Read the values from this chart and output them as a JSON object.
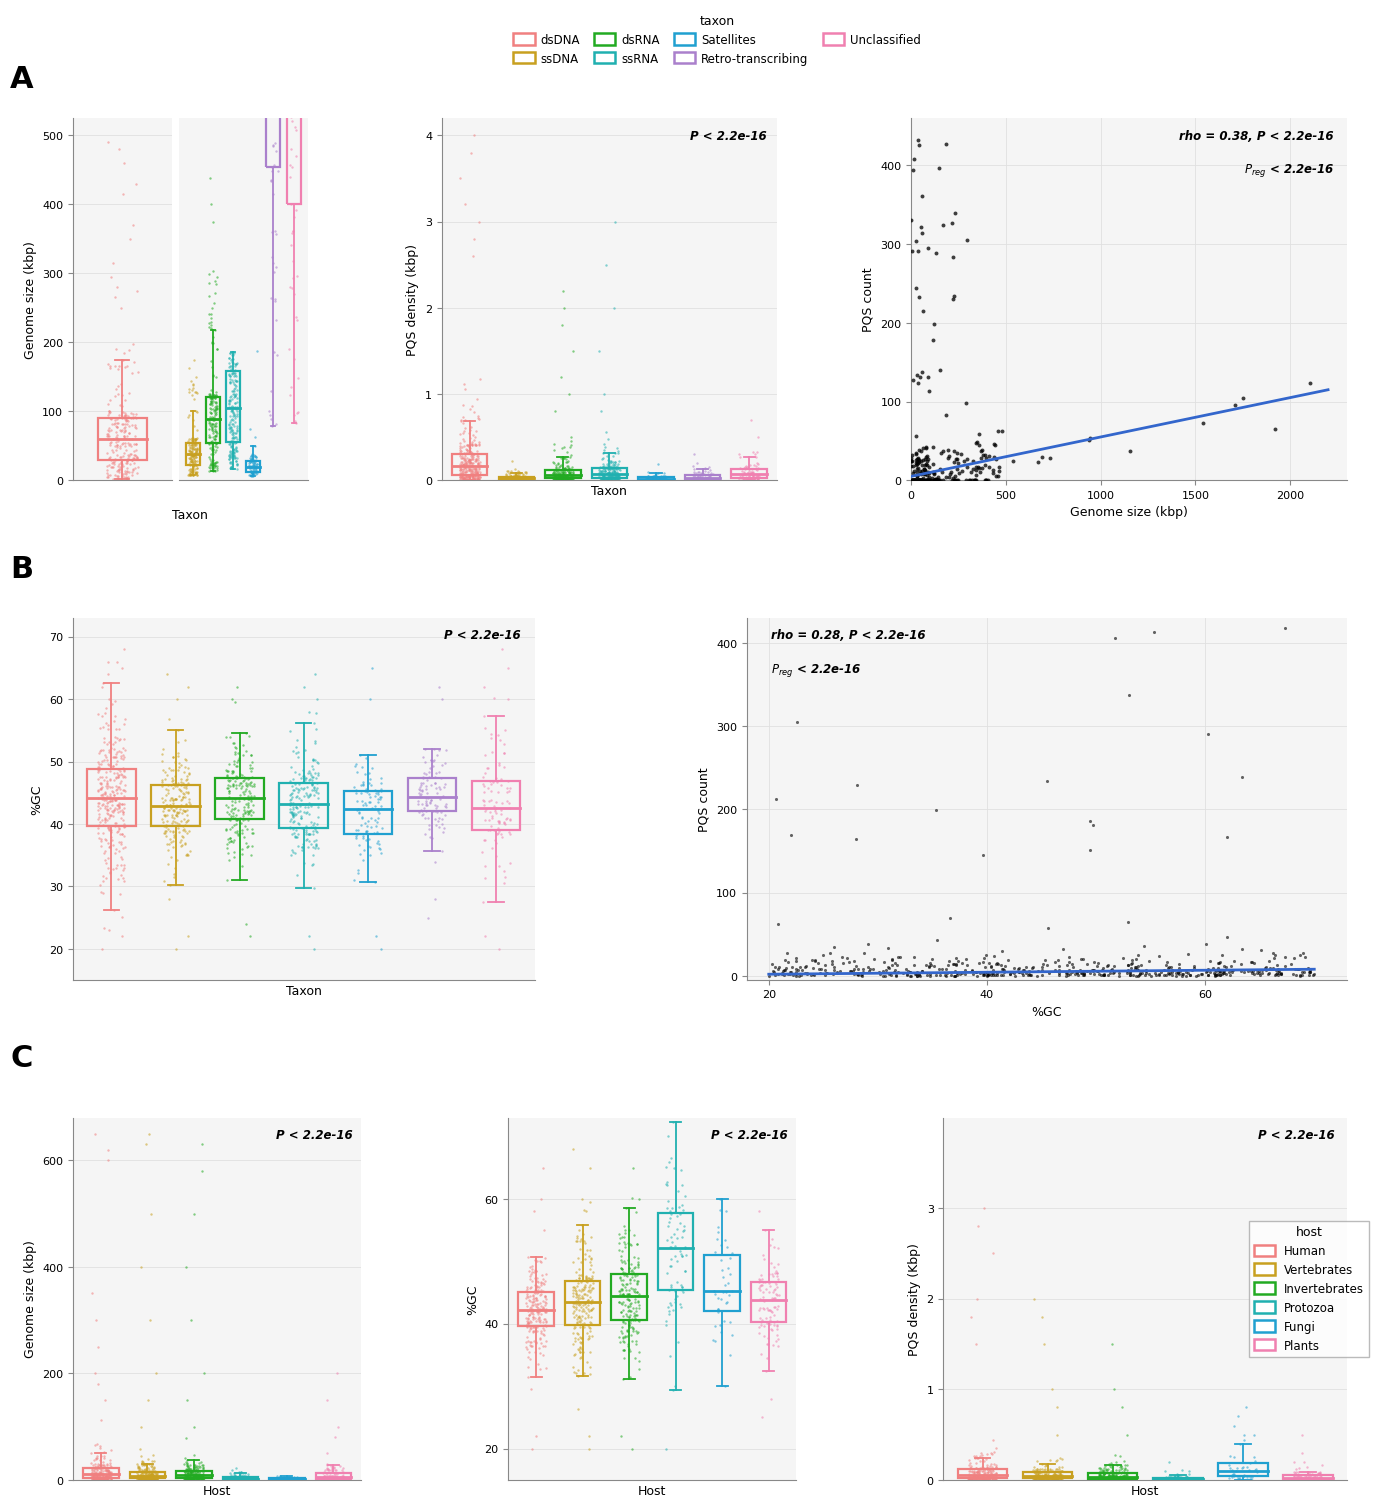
{
  "taxon_colors": {
    "dsDNA": "#F08080",
    "ssDNA": "#C8A020",
    "dsRNA": "#22AA22",
    "ssRNA": "#20B0B0",
    "Satellites": "#20A0D0",
    "Retro-transcribing": "#AA80CC",
    "Unclassified": "#F080B0"
  },
  "host_colors": {
    "Human": "#F08080",
    "Vertebrates": "#C8A020",
    "Invertebrates": "#22AA22",
    "Protozoa": "#20B0B0",
    "Fungi": "#20A0D0",
    "Plants": "#F080B0"
  },
  "taxon_order": [
    "dsDNA",
    "ssDNA",
    "dsRNA",
    "ssRNA",
    "Satellites",
    "Retro-transcribing",
    "Unclassified"
  ],
  "host_order": [
    "Human",
    "Vertebrates",
    "Invertebrates",
    "Protozoa",
    "Fungi",
    "Plants"
  ],
  "pval_text": "P < 2.2e-16",
  "background_color": "#FFFFFF",
  "panel_bg": "#F5F5F5",
  "grid_color": "#E0E0E0"
}
